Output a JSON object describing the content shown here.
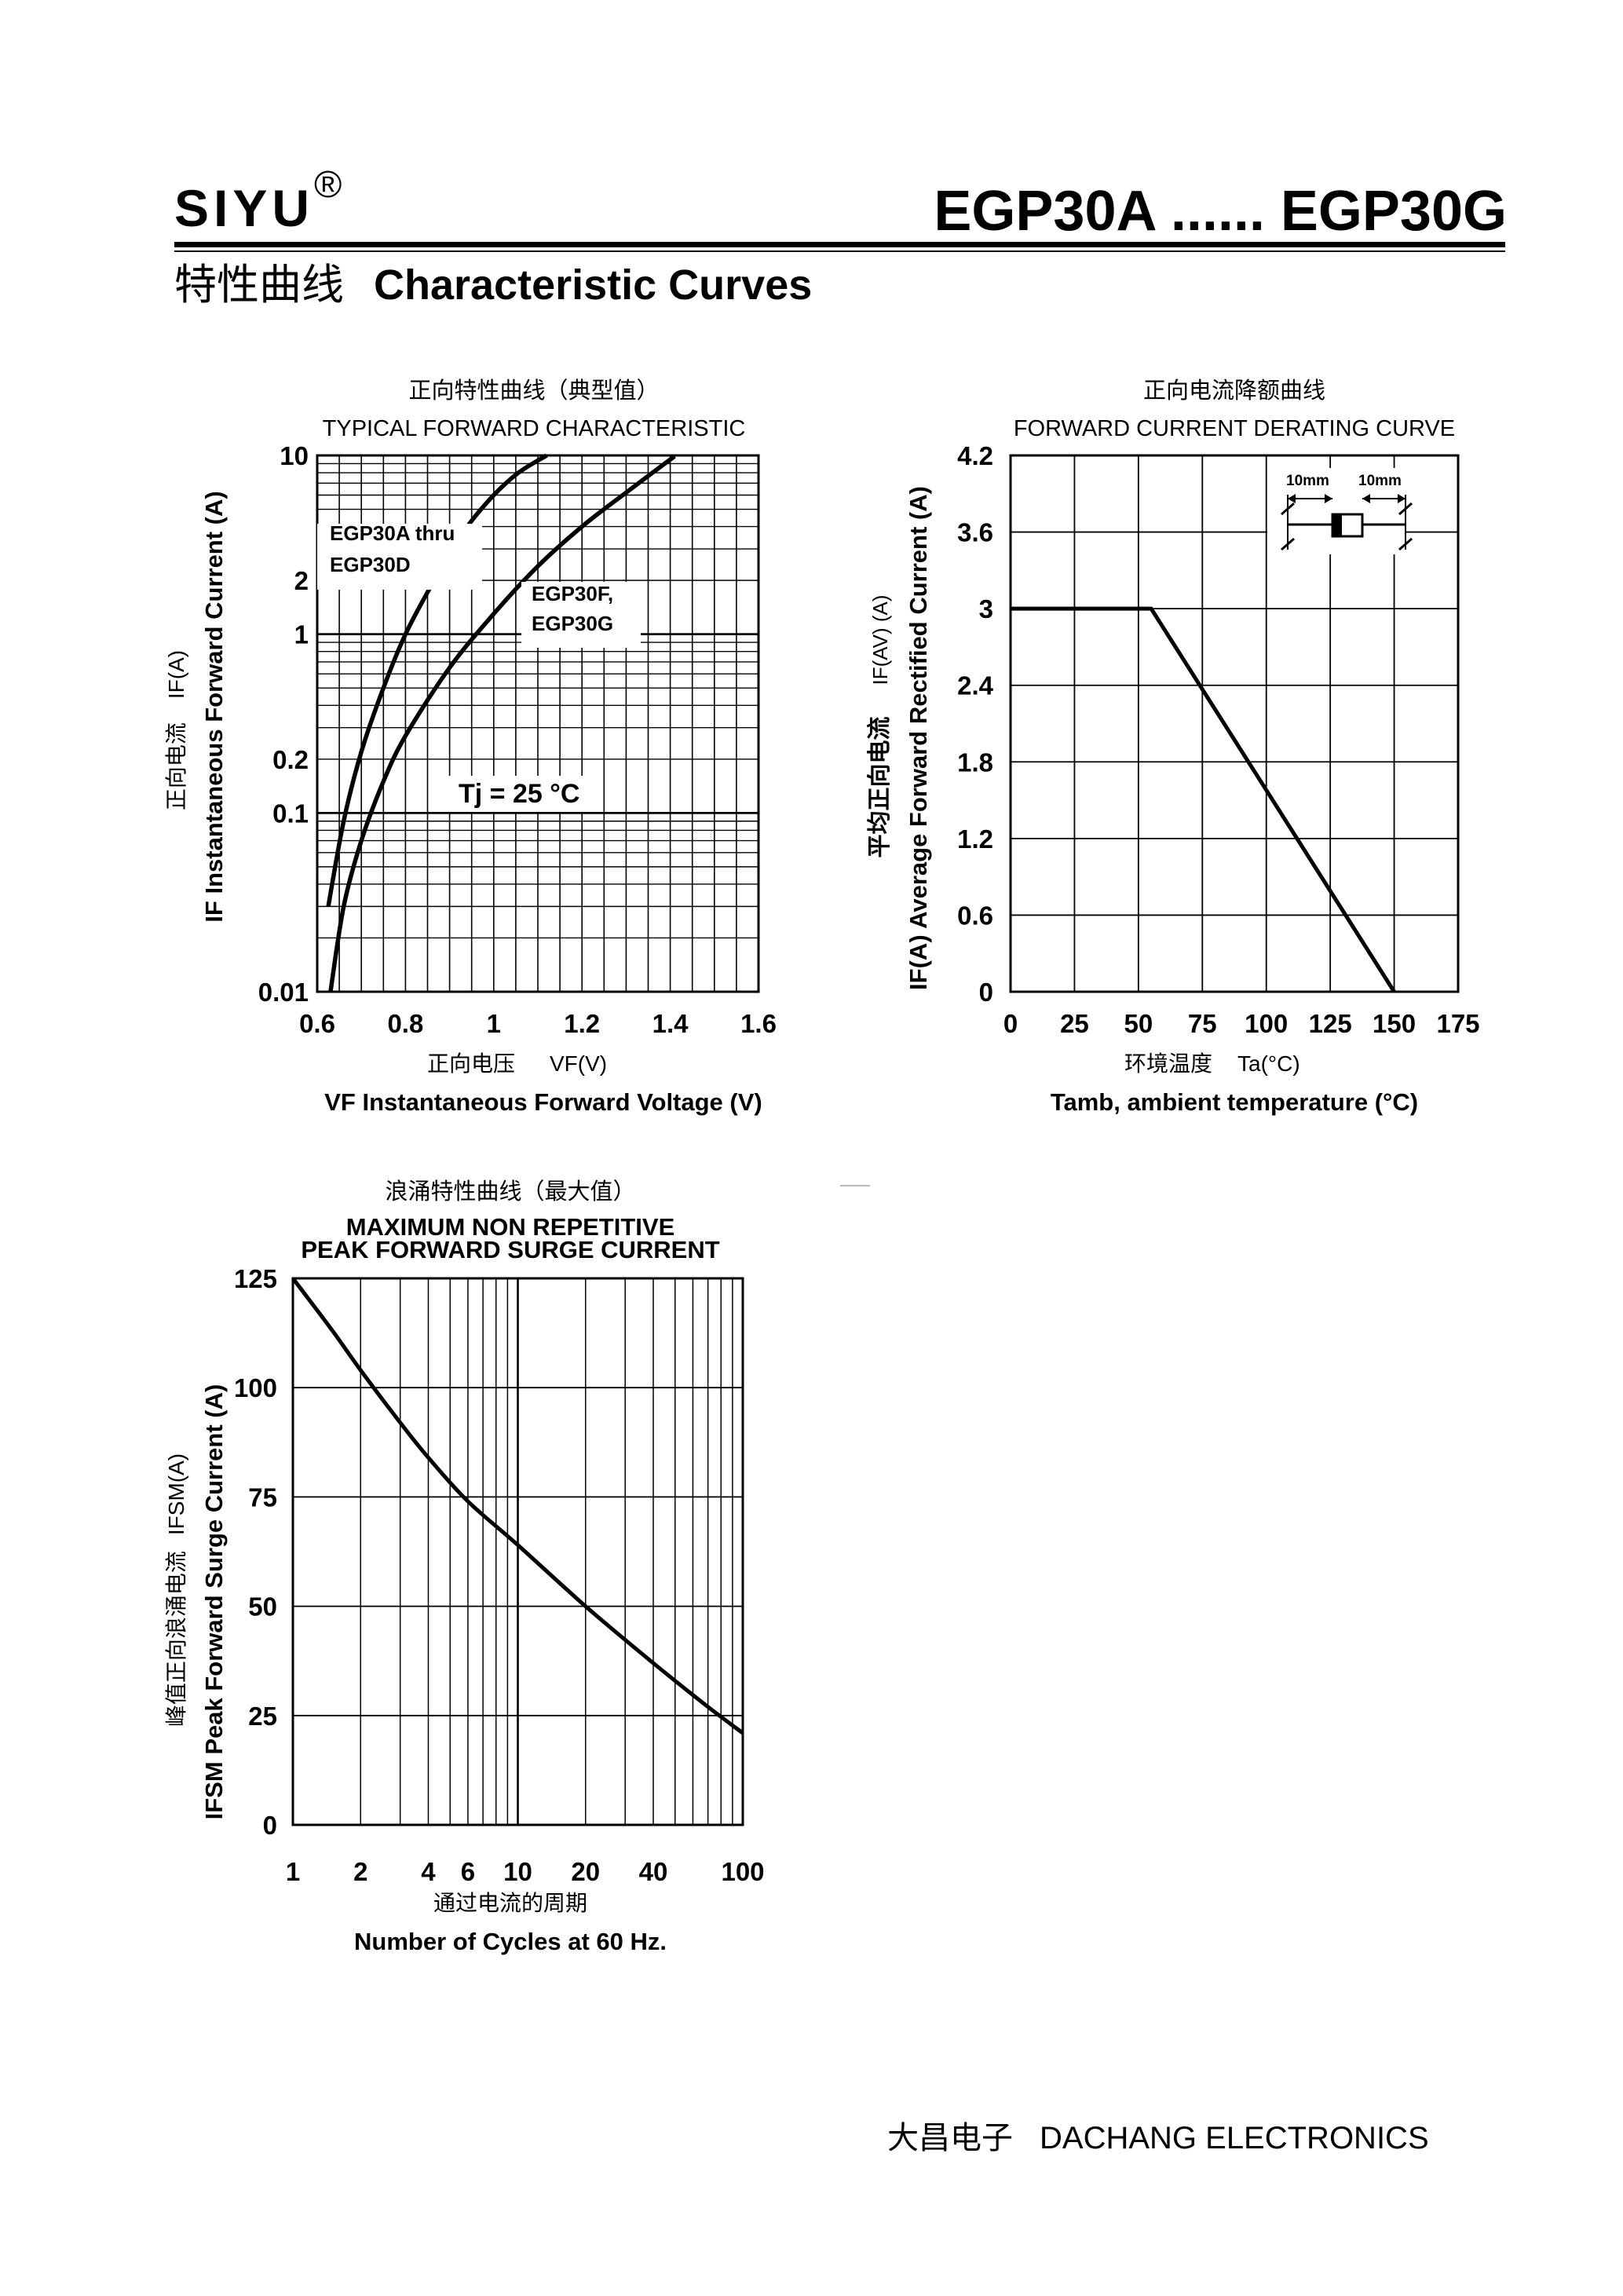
{
  "header": {
    "brand": "SIYU",
    "brand_mark": "®",
    "model": "EGP30A ...... EGP30G",
    "section_cn": "特性曲线",
    "section_en": "Characteristic Curves"
  },
  "footer": {
    "company_cn": "大昌电子",
    "company_en": "DACHANG ELECTRONICS"
  },
  "chart_data": [
    {
      "type": "line",
      "title_cn": "正向特性曲线（典型值）",
      "title": "TYPICAL FORWARD CHARACTERISTIC",
      "xlabel_cn": "正向电压",
      "xlabel_unit": "VF(V)",
      "xlabel": "VF Instantaneous Forward Voltage (V)",
      "ylabel_cn": "正向电流",
      "ylabel_unit": "IF(A)",
      "ylabel": "IF Instantaneous Forward Current (A)",
      "xlim": [
        0.6,
        1.6
      ],
      "ylim": [
        0.01,
        10
      ],
      "yscale": "log",
      "x_ticks": [
        "0.6",
        "0.8",
        "1",
        "1.2",
        "1.4",
        "1.6"
      ],
      "y_ticks": [
        "10",
        "2",
        "1",
        "0.2",
        "0.1",
        "0.01"
      ],
      "annotation": "Tj = 25 °C",
      "grid": true,
      "series": [
        {
          "name": "EGP30A thru EGP30D",
          "x": [
            0.625,
            0.66,
            0.7,
            0.75,
            0.8,
            0.86,
            0.92,
            0.98,
            1.05,
            1.12
          ],
          "y": [
            0.03,
            0.09,
            0.22,
            0.5,
            1.0,
            1.9,
            3.4,
            5.3,
            7.8,
            10
          ]
        },
        {
          "name": "EGP30F, EGP30G",
          "x": [
            0.63,
            0.66,
            0.7,
            0.75,
            0.8,
            0.9,
            1.0,
            1.1,
            1.2,
            1.3,
            1.41
          ],
          "y": [
            0.01,
            0.03,
            0.07,
            0.15,
            0.27,
            0.65,
            1.3,
            2.4,
            4.0,
            6.2,
            9.9
          ]
        }
      ]
    },
    {
      "type": "line",
      "title_cn": "正向电流降额曲线",
      "title": "FORWARD CURRENT DERATING CURVE",
      "xlabel_cn": "环境温度",
      "xlabel_unit": "Ta(°C)",
      "xlabel": "Tamb, ambient temperature (°C)",
      "ylabel_cn": "平均正向电流",
      "ylabel_unit": "IF(AV) (A)",
      "ylabel": "IF(A) Average Forward Rectified Current (A)",
      "xlim": [
        0,
        175
      ],
      "ylim": [
        0,
        4.2
      ],
      "x_ticks": [
        "0",
        "25",
        "50",
        "75",
        "100",
        "125",
        "150",
        "175"
      ],
      "y_ticks": [
        "4.2",
        "3.6",
        "3",
        "2.4",
        "1.8",
        "1.2",
        "0.6",
        "0"
      ],
      "grid": true,
      "inset_labels": [
        "10mm",
        "10mm"
      ],
      "series": [
        {
          "x": [
            0,
            55,
            150
          ],
          "y": [
            3.0,
            3.0,
            0.0
          ]
        }
      ]
    },
    {
      "type": "line",
      "title_cn": "浪涌特性曲线（最大值）",
      "title": "MAXIMUM NON REPETITIVE",
      "subtitle": "PEAK FORWARD SURGE CURRENT",
      "xlabel_cn": "通过电流的周期",
      "xlabel": "Number  of  Cycles at 60 Hz.",
      "ylabel_cn": "峰值正向浪涌电流",
      "ylabel_unit": "IFSM(A)",
      "ylabel": "IFSM Peak Forward Surge Current (A)",
      "xlim": [
        1,
        100
      ],
      "xscale": "log",
      "ylim": [
        0,
        125
      ],
      "x_ticks": [
        "1",
        "2",
        "4",
        "6",
        "10",
        "20",
        "40",
        "100"
      ],
      "y_ticks": [
        "125",
        "100",
        "75",
        "50",
        "25",
        "0"
      ],
      "grid": true,
      "series": [
        {
          "x": [
            1,
            1.5,
            2,
            3,
            4,
            6,
            10,
            20,
            40,
            70,
            100
          ],
          "y": [
            125,
            113,
            104,
            92,
            84,
            74,
            64,
            50,
            37,
            27,
            21
          ]
        }
      ]
    }
  ]
}
